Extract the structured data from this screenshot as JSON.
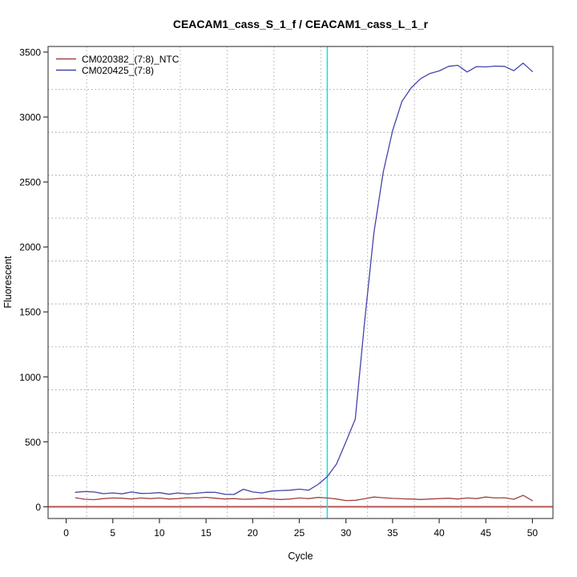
{
  "chart_data": {
    "type": "line",
    "title": "CEACAM1_cass_S_1_f / CEACAM1_cass_L_1_r",
    "xlabel": "Cycle",
    "ylabel": "Fluorescent",
    "x_ticks": [
      0,
      5,
      10,
      15,
      20,
      25,
      30,
      35,
      40,
      45,
      50
    ],
    "y_ticks": [
      0,
      500,
      1000,
      1500,
      2000,
      2500,
      3000,
      3500
    ],
    "xlim": [
      -1.94,
      52.2
    ],
    "ylim": [
      -90,
      3543
    ],
    "grid": "dotted",
    "grid_color": "#ADADAD",
    "legend_position": "top-left",
    "threshold_cycle_line": {
      "x": 28,
      "color": "#00E8E8"
    },
    "baseline_line": {
      "y": 0,
      "color": "#BB5555"
    },
    "x": [
      1,
      2,
      3,
      4,
      5,
      6,
      7,
      8,
      9,
      10,
      11,
      12,
      13,
      14,
      15,
      16,
      17,
      18,
      19,
      20,
      21,
      22,
      23,
      24,
      25,
      26,
      27,
      28,
      29,
      30,
      31,
      32,
      33,
      34,
      35,
      36,
      37,
      38,
      39,
      40,
      41,
      42,
      43,
      44,
      45,
      46,
      47,
      48,
      49,
      50
    ],
    "series": [
      {
        "name": "CM020382_(7:8)_NTC",
        "color": "#A04343",
        "values": [
          70,
          58,
          55,
          63,
          68,
          66,
          60,
          68,
          63,
          68,
          60,
          63,
          70,
          68,
          73,
          66,
          60,
          63,
          58,
          60,
          66,
          60,
          56,
          60,
          68,
          63,
          72,
          68,
          60,
          48,
          50,
          62,
          75,
          70,
          65,
          62,
          60,
          56,
          60,
          63,
          66,
          60,
          68,
          63,
          75,
          68,
          70,
          58,
          88,
          47
        ]
      },
      {
        "name": "CM020425_(7:8)",
        "color": "#4444AA",
        "values": [
          112,
          117,
          114,
          101,
          107,
          100,
          114,
          103,
          104,
          109,
          97,
          107,
          99,
          105,
          112,
          111,
          96,
          95,
          135,
          114,
          107,
          121,
          125,
          128,
          136,
          128,
          172,
          232,
          330,
          500,
          675,
          1420,
          2110,
          2575,
          2895,
          3120,
          3225,
          3295,
          3335,
          3355,
          3390,
          3398,
          3347,
          3388,
          3386,
          3392,
          3390,
          3357,
          3415,
          3350
        ]
      }
    ]
  }
}
